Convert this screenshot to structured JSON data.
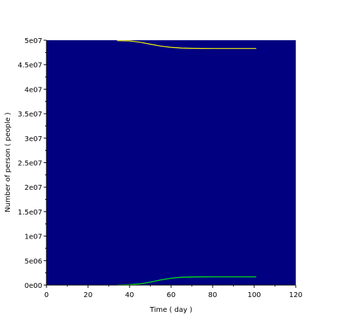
{
  "chart_data": {
    "type": "line",
    "xlabel": "Time ( day )",
    "ylabel": "Number of person ( people )",
    "xlim": [
      0,
      120
    ],
    "ylim": [
      0,
      50000000
    ],
    "x_ticks": [
      0,
      20,
      40,
      60,
      80,
      100,
      120
    ],
    "x_tick_labels": [
      "0",
      "20",
      "40",
      "60",
      "80",
      "100",
      "120"
    ],
    "y_ticks": [
      0,
      5000000,
      10000000,
      15000000,
      20000000,
      25000000,
      30000000,
      35000000,
      40000000,
      45000000,
      50000000
    ],
    "y_tick_labels": [
      "0e00",
      "5e06",
      "1e07",
      "1.5e07",
      "2e07",
      "2.5e07",
      "3e07",
      "3.5e07",
      "4e07",
      "4.5e07",
      "5e07"
    ],
    "grid": false,
    "plot_background": "#000080",
    "series": [
      {
        "color": "#ffff00",
        "x": [
          34,
          40,
          45,
          50,
          55,
          60,
          65,
          70,
          75,
          80,
          90,
          101
        ],
        "y": [
          49900000,
          49850000,
          49600000,
          49200000,
          48800000,
          48550000,
          48400000,
          48350000,
          48330000,
          48320000,
          48320000,
          48320000
        ]
      },
      {
        "color": "#00ff00",
        "x": [
          34,
          40,
          45,
          50,
          55,
          60,
          65,
          70,
          75,
          80,
          90,
          101
        ],
        "y": [
          30000,
          80000,
          250000,
          600000,
          1050000,
          1400000,
          1600000,
          1650000,
          1670000,
          1680000,
          1680000,
          1680000
        ]
      }
    ]
  }
}
